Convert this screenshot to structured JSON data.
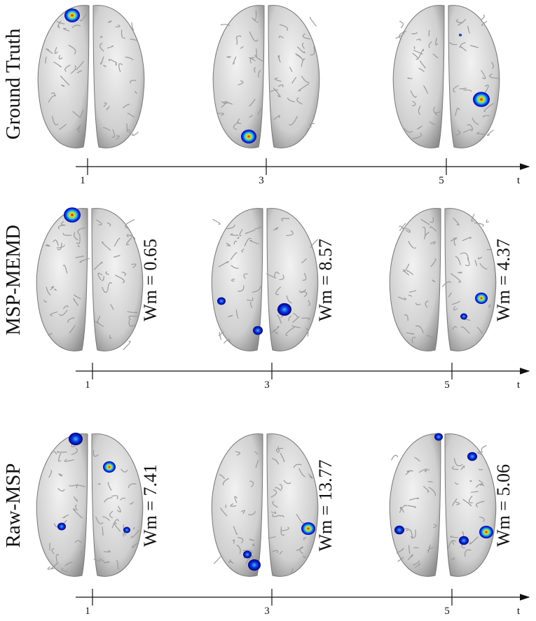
{
  "rows": [
    {
      "label": "Ground Truth",
      "panels": [
        {},
        {},
        {}
      ],
      "ticks": [
        "1",
        "3",
        "5"
      ],
      "axis_end": "t"
    },
    {
      "label": "MSP-MEMD",
      "panels": [
        {
          "wm": "Wm = 0.65"
        },
        {
          "wm": "Wm = 8.57"
        },
        {
          "wm": "Wm = 4.37"
        }
      ],
      "ticks": [
        "1",
        "3",
        "5"
      ],
      "axis_end": "t"
    },
    {
      "label": "Raw-MSP",
      "panels": [
        {
          "wm": "Wm = 7.41"
        },
        {
          "wm": "Wm = 13.77"
        },
        {
          "wm": "Wm = 5.06"
        }
      ],
      "ticks": [
        "1",
        "3",
        "5"
      ],
      "axis_end": "t"
    }
  ]
}
